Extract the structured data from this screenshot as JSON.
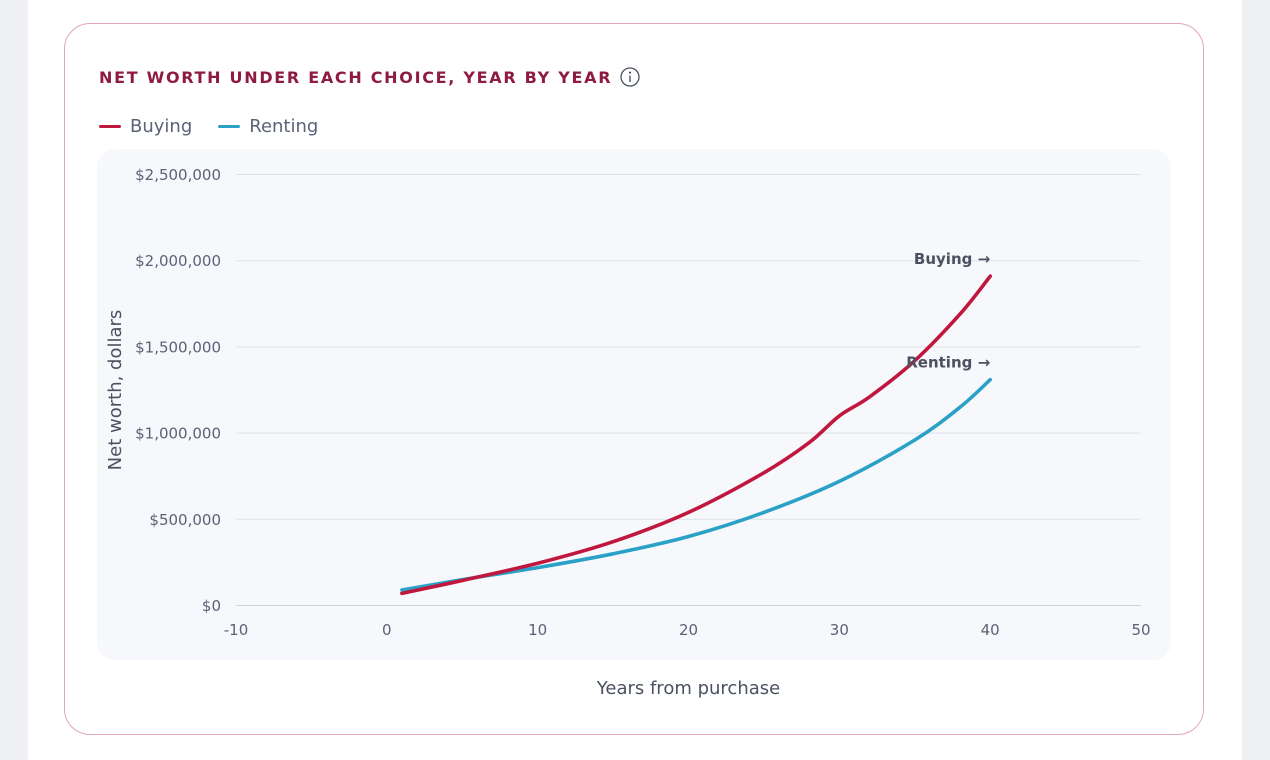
{
  "card": {
    "title": "NET WORTH UNDER EACH CHOICE, YEAR BY YEAR",
    "info_icon": "info-circle-icon"
  },
  "legend": [
    {
      "label": "Buying",
      "color": "#c0173f"
    },
    {
      "label": "Renting",
      "color": "#2aa1c6"
    }
  ],
  "chart_data": {
    "type": "line",
    "xlabel": "Years from purchase",
    "ylabel": "Net worth, dollars",
    "xlim": [
      -10,
      50
    ],
    "ylim": [
      0,
      2500000
    ],
    "x_ticks": [
      "-10",
      "0",
      "10",
      "20",
      "30",
      "40",
      "50"
    ],
    "y_ticks": [
      "$0",
      "$500,000",
      "$1,000,000",
      "$1,500,000",
      "$2,000,000",
      "$2,500,000"
    ],
    "grid": true,
    "legend_position": "top-left",
    "series": [
      {
        "name": "Buying",
        "color": "#c0173f",
        "end_label": "Buying →",
        "x": [
          1,
          5,
          10,
          15,
          20,
          25,
          28,
          30,
          32,
          35,
          38,
          40
        ],
        "y": [
          70000,
          145000,
          245000,
          370000,
          540000,
          770000,
          945000,
          1100000,
          1210000,
          1420000,
          1690000,
          1910000
        ]
      },
      {
        "name": "Renting",
        "color": "#2aa1c6",
        "end_label": "Renting →",
        "x": [
          1,
          5,
          10,
          15,
          20,
          25,
          30,
          35,
          38,
          40
        ],
        "y": [
          90000,
          150000,
          220000,
          300000,
          400000,
          540000,
          720000,
          960000,
          1150000,
          1310000
        ]
      }
    ]
  }
}
